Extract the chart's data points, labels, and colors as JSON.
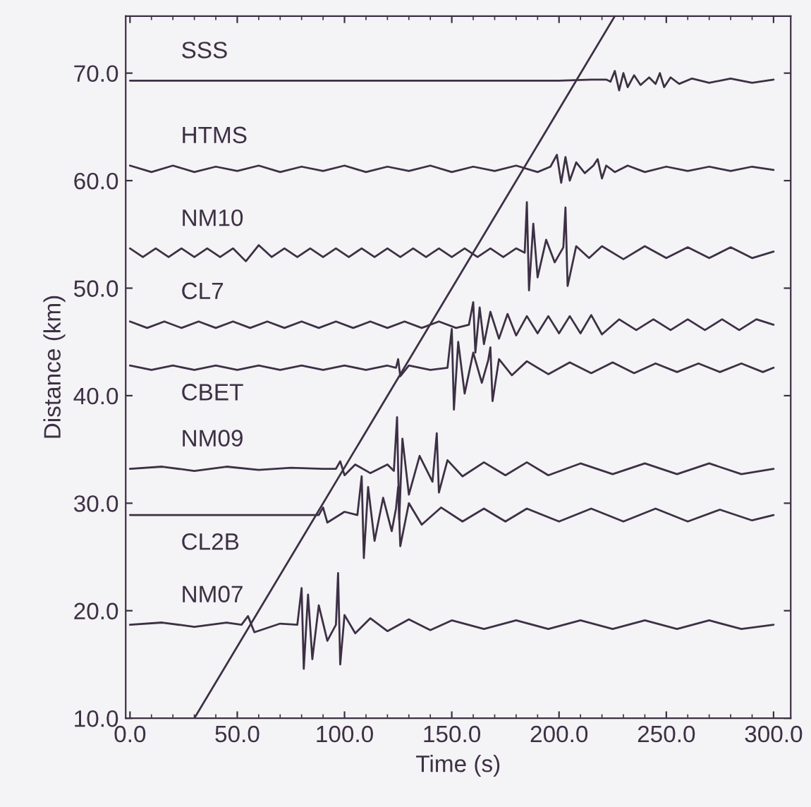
{
  "chart_data": {
    "type": "line",
    "xlabel": "Time (s)",
    "ylabel": "Distance (km)",
    "xlim": [
      -2,
      308
    ],
    "ylim": [
      10,
      75.3
    ],
    "xticks": [
      {
        "value": 0,
        "label": "0.0"
      },
      {
        "value": 50,
        "label": "50.0"
      },
      {
        "value": 100,
        "label": "100.0"
      },
      {
        "value": 150,
        "label": "150.0"
      },
      {
        "value": 200,
        "label": "200.0"
      },
      {
        "value": 250,
        "label": "250.0"
      },
      {
        "value": 300,
        "label": "300.0"
      }
    ],
    "yticks": [
      {
        "value": 10,
        "label": "10.0"
      },
      {
        "value": 20,
        "label": "20.0"
      },
      {
        "value": 30,
        "label": "30.0"
      },
      {
        "value": 40,
        "label": "40.0"
      },
      {
        "value": 50,
        "label": "50.0"
      },
      {
        "value": 60,
        "label": "60.0"
      },
      {
        "value": 70,
        "label": "70.0"
      }
    ],
    "grid": false,
    "marker": "none",
    "line_style": "solid",
    "series": [
      {
        "name": "SSS",
        "color": "#3d3045",
        "x": [
          0,
          100,
          200,
          215,
          222,
          224,
          226,
          228,
          230,
          232,
          235,
          238,
          242,
          245,
          247,
          249,
          252,
          256,
          262,
          270,
          280,
          290,
          300
        ],
        "values": [
          69.3,
          69.3,
          69.3,
          69.4,
          69.4,
          69.2,
          70.2,
          68.4,
          70.0,
          68.7,
          69.8,
          68.9,
          69.6,
          69.0,
          70.0,
          68.7,
          69.6,
          69.0,
          69.5,
          69.1,
          69.5,
          69.1,
          69.4
        ]
      },
      {
        "name": "HTMS",
        "color": "#3d3045",
        "x": [
          0,
          10,
          20,
          30,
          40,
          50,
          60,
          70,
          80,
          90,
          100,
          110,
          120,
          130,
          140,
          150,
          160,
          170,
          180,
          190,
          196,
          199,
          201,
          203,
          205,
          208,
          212,
          216,
          218,
          220,
          222,
          226,
          232,
          240,
          250,
          260,
          270,
          280,
          290,
          300
        ],
        "values": [
          61.4,
          60.8,
          61.4,
          60.8,
          61.3,
          60.9,
          61.4,
          60.8,
          61.3,
          60.9,
          61.4,
          60.8,
          61.3,
          60.9,
          61.4,
          60.8,
          61.3,
          60.9,
          61.4,
          60.8,
          61.3,
          62.4,
          59.8,
          62.2,
          60.0,
          61.7,
          60.7,
          61.4,
          62.0,
          60.2,
          61.4,
          60.8,
          61.4,
          60.8,
          61.3,
          60.9,
          61.3,
          60.9,
          61.3,
          61.0
        ]
      },
      {
        "name": "NM10",
        "color": "#3d3045",
        "x": [
          0,
          6,
          12,
          18,
          24,
          30,
          36,
          42,
          48,
          54,
          60,
          66,
          72,
          78,
          84,
          90,
          96,
          102,
          108,
          114,
          120,
          126,
          132,
          138,
          144,
          150,
          156,
          162,
          168,
          174,
          180,
          184,
          185,
          186,
          188,
          190,
          194,
          198,
          202,
          203,
          204,
          208,
          214,
          220,
          230,
          240,
          250,
          260,
          270,
          280,
          290,
          300
        ],
        "values": [
          53.7,
          52.9,
          53.7,
          52.9,
          53.7,
          52.9,
          53.7,
          52.9,
          53.7,
          52.5,
          54.0,
          52.9,
          53.7,
          52.9,
          53.7,
          52.9,
          53.7,
          52.9,
          53.7,
          52.9,
          53.7,
          52.9,
          53.7,
          52.9,
          53.7,
          52.9,
          53.7,
          52.9,
          53.7,
          52.9,
          53.7,
          53.3,
          58.0,
          49.8,
          56.0,
          51.0,
          54.5,
          52.4,
          53.8,
          57.5,
          50.2,
          53.9,
          52.8,
          53.9,
          52.7,
          53.9,
          52.8,
          53.8,
          52.8,
          53.8,
          52.8,
          53.4
        ]
      },
      {
        "name": "CL7",
        "color": "#3d3045",
        "x": [
          0,
          8,
          16,
          24,
          32,
          40,
          48,
          56,
          64,
          72,
          80,
          88,
          96,
          104,
          112,
          120,
          128,
          136,
          144,
          152,
          158,
          160,
          161,
          163,
          165,
          168,
          172,
          176,
          180,
          185,
          190,
          195,
          200,
          205,
          210,
          215,
          220,
          228,
          236,
          244,
          252,
          260,
          268,
          276,
          284,
          292,
          300
        ],
        "values": [
          46.9,
          46.3,
          46.9,
          46.3,
          46.9,
          46.3,
          46.9,
          46.3,
          46.9,
          46.3,
          46.9,
          46.3,
          46.9,
          46.3,
          46.9,
          46.3,
          46.9,
          46.3,
          46.9,
          46.3,
          46.6,
          48.7,
          44.0,
          48.2,
          44.8,
          47.8,
          45.3,
          47.6,
          45.6,
          47.4,
          45.8,
          47.4,
          45.8,
          47.4,
          45.8,
          47.5,
          45.7,
          47.1,
          46.1,
          47.1,
          46.1,
          47.1,
          46.1,
          47.1,
          46.1,
          47.1,
          46.6
        ]
      },
      {
        "name": "CBET",
        "color": "#3d3045",
        "x": [
          0,
          10,
          20,
          30,
          40,
          50,
          60,
          70,
          80,
          90,
          100,
          110,
          120,
          124,
          125,
          126,
          130,
          140,
          148,
          150,
          151,
          153,
          156,
          160,
          164,
          167,
          168,
          169,
          172,
          178,
          185,
          195,
          205,
          215,
          225,
          235,
          245,
          255,
          265,
          275,
          285,
          295,
          300
        ],
        "values": [
          42.8,
          42.4,
          42.8,
          42.4,
          42.8,
          42.4,
          42.8,
          42.4,
          42.8,
          42.4,
          42.8,
          42.4,
          42.8,
          42.6,
          43.4,
          41.8,
          42.8,
          42.4,
          42.6,
          46.2,
          38.7,
          45.0,
          40.2,
          44.0,
          41.2,
          43.3,
          44.5,
          39.5,
          43.4,
          41.9,
          43.2,
          42.0,
          43.1,
          42.1,
          43.1,
          42.1,
          43.0,
          42.2,
          43.0,
          42.2,
          43.0,
          42.2,
          42.6
        ]
      },
      {
        "name": "NM09",
        "color": "#3d3045",
        "x": [
          0,
          15,
          30,
          45,
          60,
          75,
          90,
          96,
          98,
          100,
          105,
          112,
          120,
          123,
          124.5,
          125.5,
          127,
          130,
          135,
          141,
          143,
          144,
          148,
          155,
          165,
          175,
          185,
          195,
          210,
          225,
          240,
          255,
          270,
          285,
          300
        ],
        "values": [
          33.2,
          33.4,
          33.0,
          33.4,
          33.1,
          33.3,
          33.2,
          33.2,
          33.9,
          32.6,
          33.6,
          32.8,
          33.6,
          33.0,
          38.0,
          28.5,
          36.0,
          30.8,
          34.4,
          32.0,
          36.5,
          31.0,
          34.0,
          32.5,
          33.8,
          32.6,
          33.8,
          32.6,
          33.7,
          32.7,
          33.7,
          32.7,
          33.7,
          32.7,
          33.2
        ]
      },
      {
        "name": "CL2B",
        "color": "#3d3045",
        "x": [
          0,
          20,
          40,
          60,
          80,
          88,
          90,
          92,
          100,
          106,
          108,
          109,
          111,
          114,
          118,
          122,
          124,
          125,
          126,
          130,
          136,
          145,
          155,
          165,
          175,
          185,
          200,
          215,
          230,
          245,
          260,
          275,
          290,
          300
        ],
        "values": [
          28.9,
          28.9,
          28.9,
          28.9,
          28.9,
          28.9,
          29.6,
          28.2,
          29.2,
          28.9,
          32.5,
          24.9,
          31.5,
          26.5,
          30.5,
          27.4,
          29.5,
          31.5,
          26.0,
          30.0,
          28.0,
          29.6,
          28.3,
          29.5,
          28.3,
          29.5,
          28.3,
          29.5,
          28.3,
          29.5,
          28.3,
          29.4,
          28.4,
          28.9
        ]
      },
      {
        "name": "NM07",
        "color": "#3d3045",
        "x": [
          0,
          15,
          30,
          45,
          52,
          55,
          58,
          70,
          78,
          80,
          81,
          83,
          85,
          88,
          92,
          96,
          97,
          98,
          100,
          105,
          112,
          120,
          130,
          140,
          150,
          165,
          180,
          195,
          210,
          225,
          240,
          255,
          270,
          285,
          300
        ],
        "values": [
          18.7,
          18.9,
          18.5,
          18.9,
          18.7,
          19.5,
          18.0,
          18.8,
          18.7,
          22.1,
          14.6,
          21.5,
          15.5,
          20.5,
          17.2,
          18.7,
          23.5,
          15.0,
          19.6,
          17.9,
          19.3,
          18.1,
          19.2,
          18.2,
          19.1,
          18.3,
          19.1,
          18.3,
          19.1,
          18.3,
          19.1,
          18.3,
          19.1,
          18.3,
          18.7
        ]
      },
      {
        "color": "#3d3045",
        "x": [
          30,
          226
        ],
        "values": [
          10,
          75.3
        ]
      }
    ]
  }
}
